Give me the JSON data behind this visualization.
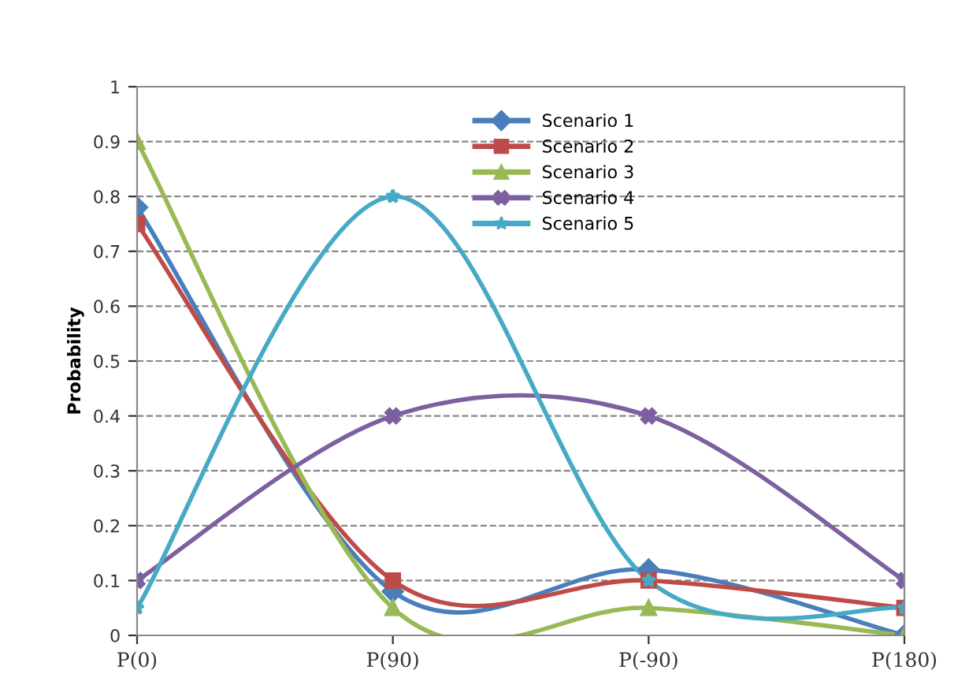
{
  "chart_data": {
    "type": "line",
    "ylabel": "Probability",
    "categories": [
      "P(0)",
      "P(90)",
      "P(-90)",
      "P(180)"
    ],
    "series": [
      {
        "name": "Scenario 1",
        "color": "#4a7ebb",
        "marker": "diamond",
        "values": [
          0.78,
          0.08,
          0.12,
          0
        ]
      },
      {
        "name": "Scenario 2",
        "color": "#be4b48",
        "marker": "square",
        "values": [
          0.75,
          0.1,
          0.1,
          0.05
        ]
      },
      {
        "name": "Scenario 3",
        "color": "#98b954",
        "marker": "triangle",
        "values": [
          0.9,
          0.05,
          0.05,
          0
        ]
      },
      {
        "name": "Scenario 4",
        "color": "#7d60a0",
        "marker": "cross",
        "values": [
          0.1,
          0.4,
          0.4,
          0.1
        ]
      },
      {
        "name": "Scenario 5",
        "color": "#46aac5",
        "marker": "star",
        "values": [
          0.05,
          0.8,
          0.1,
          0.05
        ]
      }
    ],
    "ylim": [
      0,
      1
    ],
    "yticks": [
      0,
      0.1,
      0.2,
      0.3,
      0.4,
      0.5,
      0.6,
      0.7,
      0.8,
      0.9,
      1
    ],
    "grid": "y",
    "legend": "top",
    "line_style": "solid"
  }
}
